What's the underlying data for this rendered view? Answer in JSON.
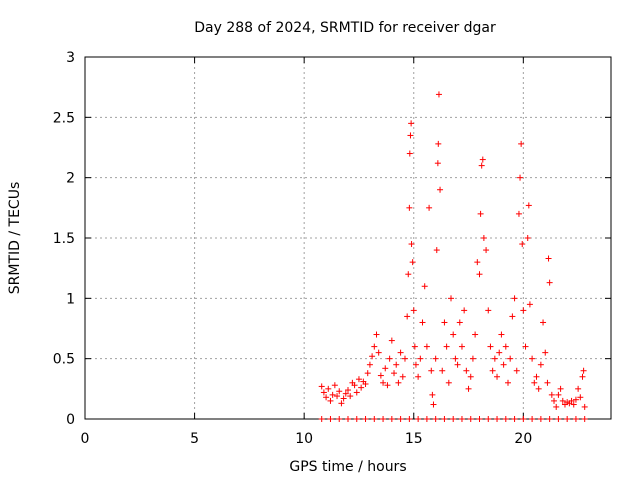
{
  "chart_data": {
    "type": "scatter",
    "title": "Day 288 of 2024, SRMTID for receiver dgar",
    "xlabel": "GPS time / hours",
    "ylabel": "SRMTID / TECUs",
    "xlim": [
      0,
      24
    ],
    "ylim": [
      0,
      3
    ],
    "xticks": [
      0,
      5,
      10,
      15,
      20
    ],
    "xtick_labels": [
      "0",
      "5",
      "10",
      "15",
      "20"
    ],
    "yticks": [
      0,
      0.5,
      1,
      1.5,
      2,
      2.5,
      3
    ],
    "ytick_labels": [
      "0",
      "0.5",
      "1",
      "1.5",
      "2",
      "2.5",
      "3"
    ],
    "grid": true,
    "marker": "+",
    "series": [
      {
        "name": "SRMTID",
        "color": "#ff0000",
        "points": [
          [
            10.8,
            0.27
          ],
          [
            10.9,
            0.22
          ],
          [
            11.0,
            0.18
          ],
          [
            11.1,
            0.25
          ],
          [
            11.2,
            0.15
          ],
          [
            11.3,
            0.2
          ],
          [
            11.4,
            0.28
          ],
          [
            11.5,
            0.19
          ],
          [
            11.6,
            0.23
          ],
          [
            11.7,
            0.13
          ],
          [
            11.8,
            0.17
          ],
          [
            11.9,
            0.21
          ],
          [
            12.0,
            0.24
          ],
          [
            12.1,
            0.19
          ],
          [
            12.2,
            0.3
          ],
          [
            12.3,
            0.28
          ],
          [
            12.4,
            0.22
          ],
          [
            12.5,
            0.33
          ],
          [
            12.6,
            0.26
          ],
          [
            12.7,
            0.31
          ],
          [
            12.8,
            0.29
          ],
          [
            12.9,
            0.38
          ],
          [
            13.0,
            0.45
          ],
          [
            13.1,
            0.52
          ],
          [
            13.2,
            0.6
          ],
          [
            13.3,
            0.7
          ],
          [
            13.4,
            0.55
          ],
          [
            13.5,
            0.36
          ],
          [
            13.6,
            0.3
          ],
          [
            13.7,
            0.42
          ],
          [
            13.8,
            0.28
          ],
          [
            13.9,
            0.5
          ],
          [
            14.0,
            0.65
          ],
          [
            14.1,
            0.38
          ],
          [
            14.2,
            0.45
          ],
          [
            14.3,
            0.3
          ],
          [
            14.4,
            0.55
          ],
          [
            14.5,
            0.35
          ],
          [
            14.6,
            0.5
          ],
          [
            14.7,
            0.85
          ],
          [
            14.75,
            1.2
          ],
          [
            14.8,
            1.75
          ],
          [
            14.82,
            2.2
          ],
          [
            14.85,
            2.35
          ],
          [
            14.88,
            2.45
          ],
          [
            14.9,
            1.45
          ],
          [
            14.95,
            1.3
          ],
          [
            15.0,
            0.9
          ],
          [
            15.05,
            0.6
          ],
          [
            15.1,
            0.45
          ],
          [
            15.2,
            0.35
          ],
          [
            15.3,
            0.5
          ],
          [
            15.4,
            0.8
          ],
          [
            15.5,
            1.1
          ],
          [
            15.6,
            0.6
          ],
          [
            15.7,
            1.75
          ],
          [
            15.8,
            0.4
          ],
          [
            15.85,
            0.2
          ],
          [
            15.9,
            0.12
          ],
          [
            16.0,
            0.5
          ],
          [
            16.05,
            1.4
          ],
          [
            16.1,
            2.12
          ],
          [
            16.12,
            2.28
          ],
          [
            16.15,
            2.69
          ],
          [
            16.2,
            1.9
          ],
          [
            16.3,
            0.4
          ],
          [
            16.4,
            0.8
          ],
          [
            16.5,
            0.6
          ],
          [
            16.6,
            0.3
          ],
          [
            16.7,
            1.0
          ],
          [
            16.8,
            0.7
          ],
          [
            16.9,
            0.5
          ],
          [
            17.0,
            0.45
          ],
          [
            17.1,
            0.8
          ],
          [
            17.2,
            0.6
          ],
          [
            17.3,
            0.9
          ],
          [
            17.4,
            0.4
          ],
          [
            17.5,
            0.25
          ],
          [
            17.6,
            0.35
          ],
          [
            17.7,
            0.5
          ],
          [
            17.8,
            0.7
          ],
          [
            17.9,
            1.3
          ],
          [
            18.0,
            1.2
          ],
          [
            18.05,
            1.7
          ],
          [
            18.1,
            2.1
          ],
          [
            18.15,
            2.15
          ],
          [
            18.2,
            1.5
          ],
          [
            18.3,
            1.4
          ],
          [
            18.4,
            0.9
          ],
          [
            18.5,
            0.6
          ],
          [
            18.6,
            0.4
          ],
          [
            18.7,
            0.5
          ],
          [
            18.8,
            0.35
          ],
          [
            18.9,
            0.55
          ],
          [
            19.0,
            0.7
          ],
          [
            19.1,
            0.45
          ],
          [
            19.2,
            0.6
          ],
          [
            19.3,
            0.3
          ],
          [
            19.4,
            0.5
          ],
          [
            19.5,
            0.85
          ],
          [
            19.6,
            1.0
          ],
          [
            19.7,
            0.4
          ],
          [
            19.8,
            1.7
          ],
          [
            19.85,
            2.0
          ],
          [
            19.9,
            2.28
          ],
          [
            19.95,
            1.45
          ],
          [
            20.0,
            0.9
          ],
          [
            20.1,
            0.6
          ],
          [
            20.2,
            1.5
          ],
          [
            20.25,
            1.77
          ],
          [
            20.3,
            0.95
          ],
          [
            20.4,
            0.5
          ],
          [
            20.5,
            0.3
          ],
          [
            20.6,
            0.35
          ],
          [
            20.7,
            0.25
          ],
          [
            20.8,
            0.45
          ],
          [
            20.9,
            0.8
          ],
          [
            21.0,
            0.55
          ],
          [
            21.1,
            0.3
          ],
          [
            21.15,
            1.33
          ],
          [
            21.2,
            1.13
          ],
          [
            21.3,
            0.2
          ],
          [
            21.4,
            0.15
          ],
          [
            21.5,
            0.1
          ],
          [
            21.6,
            0.2
          ],
          [
            21.7,
            0.25
          ],
          [
            21.8,
            0.15
          ],
          [
            21.9,
            0.12
          ],
          [
            22.0,
            0.14
          ],
          [
            22.1,
            0.13
          ],
          [
            22.2,
            0.15
          ],
          [
            22.3,
            0.12
          ],
          [
            22.4,
            0.16
          ],
          [
            22.5,
            0.25
          ],
          [
            22.6,
            0.18
          ],
          [
            22.7,
            0.35
          ],
          [
            22.75,
            0.4
          ],
          [
            22.8,
            0.1
          ],
          [
            10.8,
            0.0
          ],
          [
            11.2,
            0.0
          ],
          [
            11.6,
            0.0
          ],
          [
            12.0,
            0.0
          ],
          [
            12.4,
            0.0
          ],
          [
            12.8,
            0.0
          ],
          [
            13.2,
            0.0
          ],
          [
            13.6,
            0.0
          ],
          [
            14.0,
            0.0
          ],
          [
            14.4,
            0.0
          ],
          [
            14.8,
            0.0
          ],
          [
            15.2,
            0.0
          ],
          [
            15.6,
            0.0
          ],
          [
            16.0,
            0.0
          ],
          [
            16.4,
            0.0
          ],
          [
            16.8,
            0.0
          ],
          [
            17.2,
            0.0
          ],
          [
            17.6,
            0.0
          ],
          [
            18.0,
            0.0
          ],
          [
            18.4,
            0.0
          ],
          [
            18.8,
            0.0
          ],
          [
            19.2,
            0.0
          ],
          [
            19.6,
            0.0
          ],
          [
            20.0,
            0.0
          ],
          [
            20.4,
            0.0
          ],
          [
            20.8,
            0.0
          ],
          [
            21.2,
            0.0
          ],
          [
            21.6,
            0.0
          ],
          [
            22.0,
            0.0
          ],
          [
            22.4,
            0.0
          ],
          [
            22.8,
            0.0
          ]
        ]
      }
    ]
  }
}
